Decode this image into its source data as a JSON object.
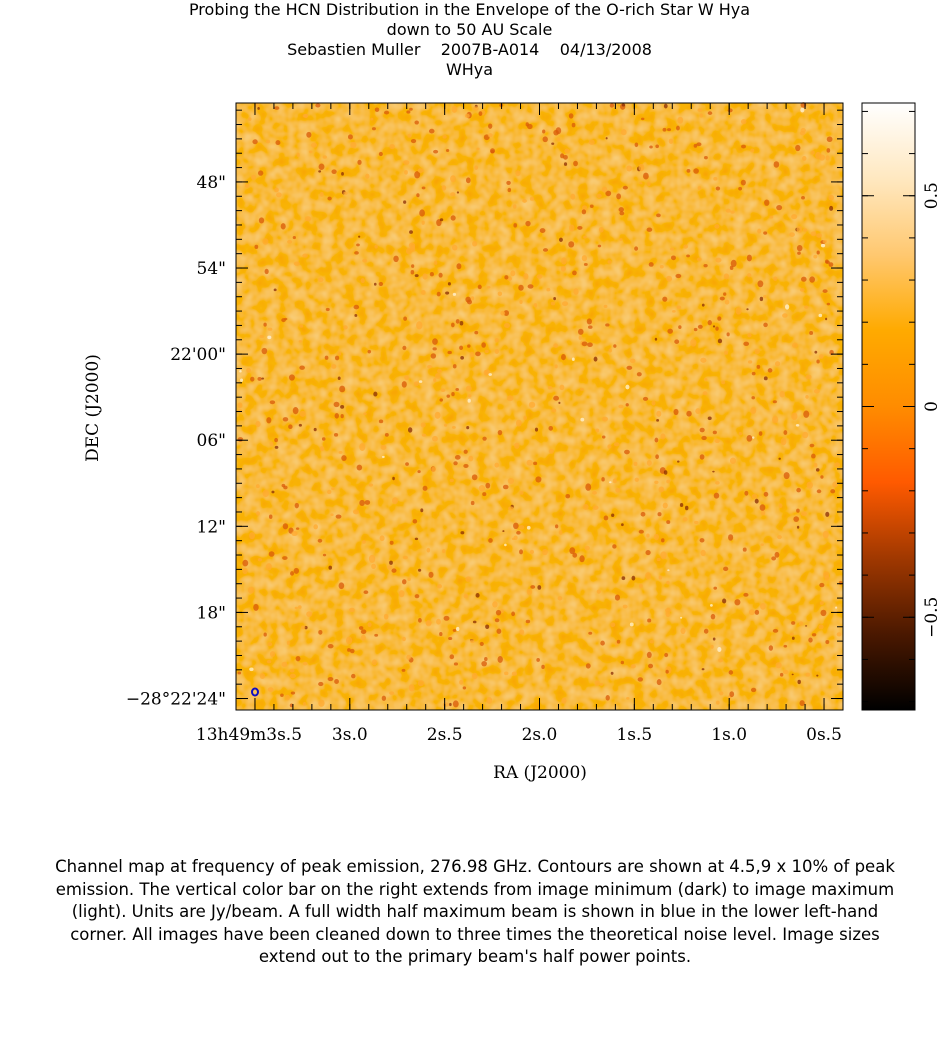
{
  "header": {
    "title_line1": "Probing the HCN Distribution in the Envelope of the O-rich Star W Hya",
    "title_line2": "down to 50 AU Scale",
    "observer": "Sebastien Muller",
    "project": "2007B-A014",
    "date": "04/13/2008",
    "source": "WHya"
  },
  "chart_data": {
    "type": "heatmap",
    "xlabel": "RA (J2000)",
    "ylabel": "DEC (J2000)",
    "x_ticks": [
      {
        "sec": 3.5,
        "label": "13h49m3s.5"
      },
      {
        "sec": 3.0,
        "label": "3s.0"
      },
      {
        "sec": 2.5,
        "label": "2s.5"
      },
      {
        "sec": 2.0,
        "label": "2s.0"
      },
      {
        "sec": 1.5,
        "label": "1s.5"
      },
      {
        "sec": 1.0,
        "label": "1s.0"
      },
      {
        "sec": 0.5,
        "label": "0s.5"
      }
    ],
    "y_ticks": [
      {
        "arcsec": 48,
        "label": "48\""
      },
      {
        "arcsec": 54,
        "label": "54\""
      },
      {
        "arcsec": 60,
        "label": "22'00\""
      },
      {
        "arcsec": 66,
        "label": "06\""
      },
      {
        "arcsec": 72,
        "label": "12\""
      },
      {
        "arcsec": 78,
        "label": "18\""
      },
      {
        "arcsec": 84,
        "label": "−28°22'24\""
      }
    ],
    "ra_range_sec": [
      3.6,
      0.4
    ],
    "dec_offset_range_arcsec": [
      42.5,
      84.8
    ],
    "colorbar": {
      "orientation": "vertical",
      "placement": "right",
      "range": [
        -0.72,
        0.72
      ],
      "ticks": [
        -0.5,
        0,
        0.5
      ],
      "tick_labels": [
        "−0.5",
        "0",
        "0.5"
      ],
      "colormap": [
        "#000000",
        "#4a1800",
        "#a03800",
        "#ff5a00",
        "#ff8c00",
        "#ffaa00",
        "#ffc870",
        "#ffe8c0",
        "#ffffff"
      ]
    },
    "image_summary": "Noise-dominated channel map near zero Jy/beam; no significant emission; beam shown in blue at lower left",
    "beam_color": "#1010c0",
    "background_color": "#f58a1c"
  },
  "caption": "Channel map at frequency of peak emission, 276.98 GHz.  Contours are shown at 4.5,9 x 10% of peak emission.  The vertical color bar on the right extends from image minimum (dark) to image maximum (light).  Units are Jy/beam.  A full width half maximum beam is shown in blue in the lower left-hand corner.  All images have been cleaned down to three times the theoretical noise level.  Image sizes extend out to the primary beam's half power points."
}
